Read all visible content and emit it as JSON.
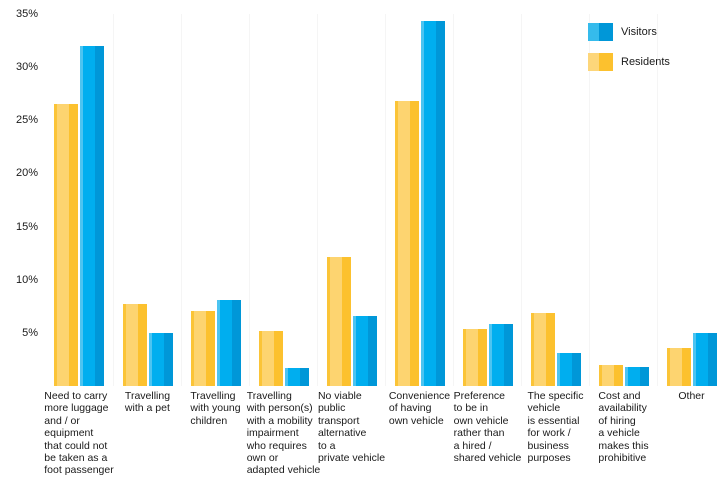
{
  "chart_data": {
    "type": "bar",
    "title": "",
    "xlabel": "",
    "ylabel": "",
    "ylim": [
      0,
      35
    ],
    "grid": "off",
    "legend_position": "top-right",
    "yticks": [
      {
        "value": 35,
        "label": "35%"
      },
      {
        "value": 30,
        "label": "30%"
      },
      {
        "value": 25,
        "label": "25%"
      },
      {
        "value": 20,
        "label": "20%"
      },
      {
        "value": 15,
        "label": "15%"
      },
      {
        "value": 10,
        "label": "10%"
      },
      {
        "value": 5,
        "label": "5%"
      }
    ],
    "categories": [
      "Need to carry\nmore luggage\nand / or\nequipment\nthat could not\nbe taken as a\nfoot passenger",
      "Travelling\nwith a pet",
      "Travelling\nwith young\nchildren",
      "Travelling\nwith person(s)\nwith a mobility\nimpairment\nwho requires\nown or\nadapted vehicle",
      "No viable\npublic\ntransport\nalternative\nto a\nprivate vehicle",
      "Convenience\nof having\nown vehicle",
      "Preference\nto be in\nown vehicle\nrather than\na hired /\nshared vehicle",
      "The specific\nvehicle\nis essential\nfor work /\nbusiness\npurposes",
      "Cost and\navailability\nof hiring\na vehicle\nmakes this\nprohibitive",
      "Other"
    ],
    "series": [
      {
        "name": "Visitors",
        "values": [
          32.0,
          5.0,
          8.1,
          1.7,
          6.6,
          34.3,
          5.8,
          3.1,
          1.8,
          5.0
        ],
        "colors": {
          "edge": "#4cc4f1",
          "main": "#00aeef",
          "dark": "#0097d8",
          "light": "#35bbec"
        }
      },
      {
        "name": "Residents",
        "values": [
          26.5,
          7.7,
          7.1,
          5.2,
          12.1,
          26.8,
          5.4,
          6.9,
          2.0,
          3.6
        ],
        "colors": {
          "edge": "#fbc437",
          "main": "#fdd470",
          "dark": "#fcc12e",
          "light": "#fdd67a"
        }
      }
    ]
  }
}
